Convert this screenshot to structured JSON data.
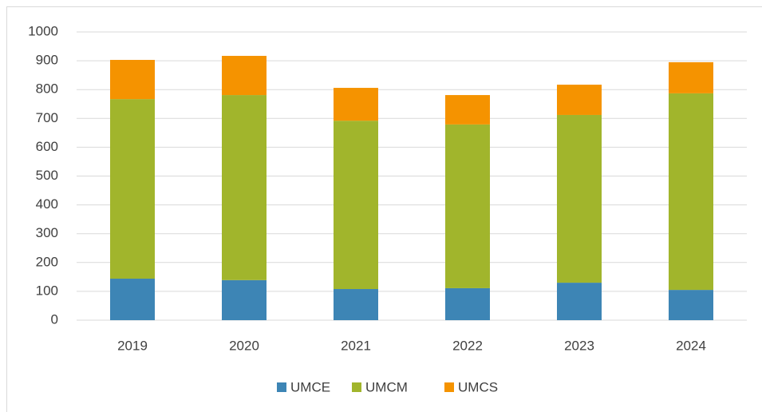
{
  "chart_data": {
    "type": "stacked_bar",
    "categories": [
      "2019",
      "2020",
      "2021",
      "2022",
      "2023",
      "2024"
    ],
    "series": [
      {
        "name": "UMCE",
        "color": "#3d85b5",
        "values": [
          144,
          139,
          108,
          111,
          130,
          105
        ]
      },
      {
        "name": "UMCM",
        "color": "#a1b52c",
        "values": [
          623,
          642,
          584,
          568,
          582,
          682
        ]
      },
      {
        "name": "UMCS",
        "color": "#f59300",
        "values": [
          136,
          136,
          114,
          102,
          105,
          108
        ]
      }
    ],
    "ylim": [
      0,
      1000
    ],
    "yticks": [
      0,
      100,
      200,
      300,
      400,
      500,
      600,
      700,
      800,
      900,
      1000
    ],
    "grid": true,
    "legend": "bottom"
  }
}
